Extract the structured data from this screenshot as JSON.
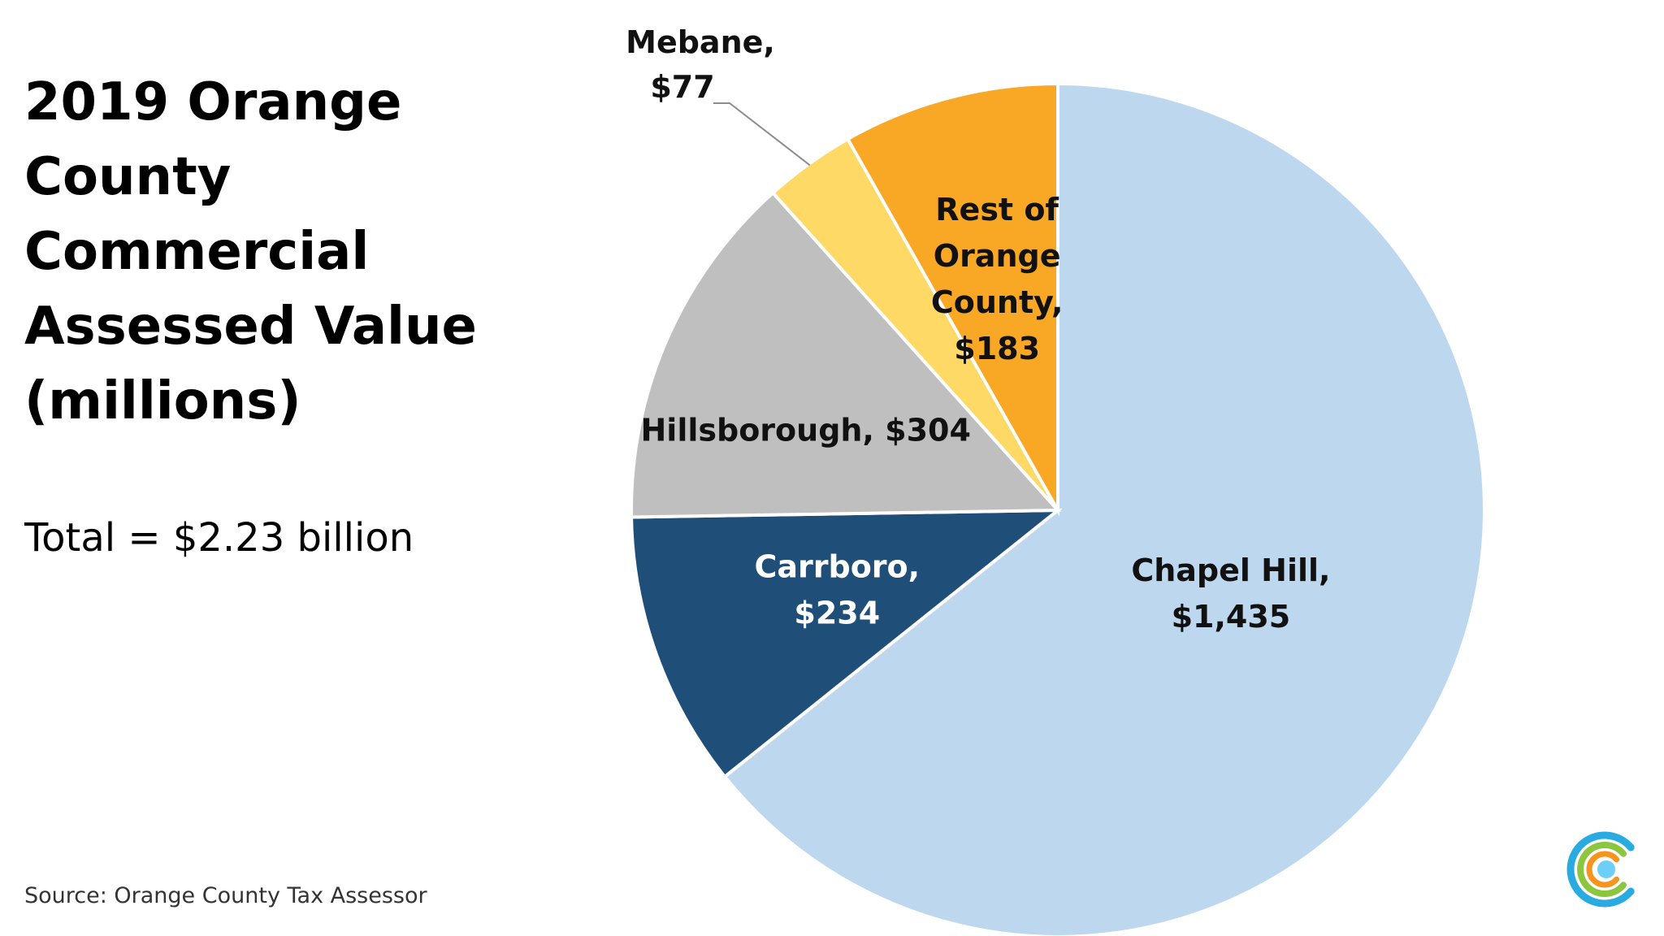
{
  "slide": {
    "title": "2019 Orange\nCounty\nCommercial\nAssessed Value\n(millions)",
    "total": "Total = $2.23 billion",
    "source": "Source: Orange County Tax Assessor"
  },
  "logo": {
    "icon": "concentric-c-logo-icon",
    "colors": [
      "#29abe2",
      "#8cc63f",
      "#f7941d",
      "#6dcff6"
    ]
  },
  "chart_data": {
    "type": "pie",
    "title": "2019 Orange County Commercial Assessed Value (millions)",
    "unit": "millions",
    "start_angle_deg": 0,
    "direction": "clockwise",
    "slices": [
      {
        "label": "Chapel Hill,",
        "value_label": "$1,435",
        "value": 1435,
        "color": "#bdd7ee",
        "text_color": "#111111"
      },
      {
        "label": "Carrboro,",
        "value_label": "$234",
        "value": 234,
        "color": "#1f4e79",
        "text_color": "#ffffff"
      },
      {
        "label": "Hillsborough, $304",
        "value_label": "",
        "value": 304,
        "color": "#bfbfbf",
        "text_color": "#111111"
      },
      {
        "label": "Mebane,",
        "value_label": "$77",
        "value": 77,
        "color": "#ffd966",
        "text_color": "#111111",
        "callout": true
      },
      {
        "label": "Rest of Orange County,",
        "value_label": "$183",
        "value": 183,
        "color": "#f9a825",
        "text_color": "#111111"
      }
    ],
    "rest_lines": [
      "Rest of",
      "Orange",
      "County,",
      "$183"
    ]
  }
}
